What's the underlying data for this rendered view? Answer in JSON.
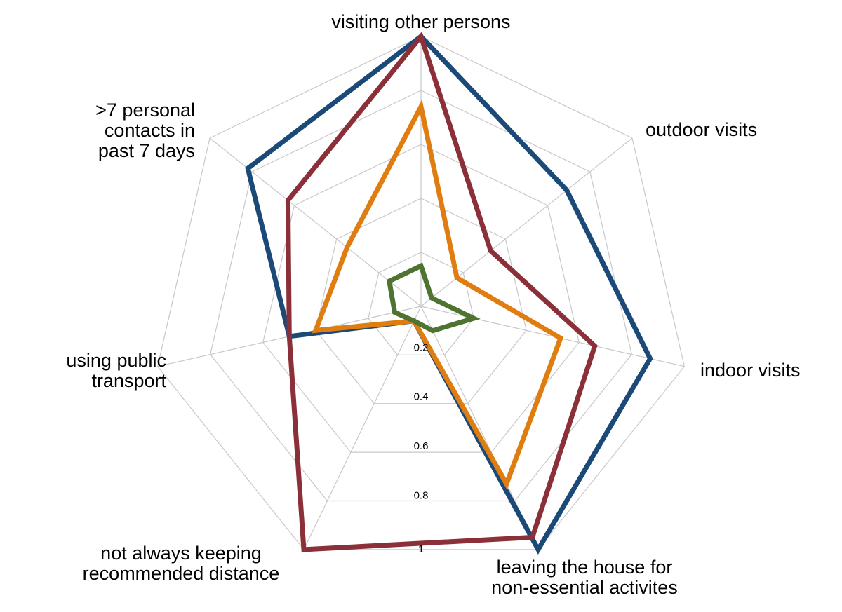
{
  "chart_data": {
    "type": "radar",
    "axes": [
      {
        "lines": [
          "visiting other persons"
        ],
        "anchor": "middle"
      },
      {
        "lines": [
          "outdoor visits"
        ],
        "anchor": "start"
      },
      {
        "lines": [
          "indoor visits"
        ],
        "anchor": "start"
      },
      {
        "lines": [
          "leaving the house for",
          "non-essential activites"
        ],
        "anchor": "middle"
      },
      {
        "lines": [
          "not always keeping",
          "recommended distance"
        ],
        "anchor": "middle"
      },
      {
        "lines": [
          "using public",
          "transport"
        ],
        "anchor": "end"
      },
      {
        "lines": [
          ">7 personal",
          "contacts in",
          "past 7 days"
        ],
        "anchor": "end"
      }
    ],
    "rlim": [
      0,
      1
    ],
    "ticks": [
      "0.2",
      "0.4",
      "0.6",
      "0.8",
      "1"
    ],
    "grid": true,
    "series": [
      {
        "color": "#1b4a78",
        "values": [
          1.0,
          0.69,
          0.87,
          1.0,
          0.06,
          0.5,
          0.82
        ]
      },
      {
        "color": "#8b3039",
        "values": [
          1.0,
          0.33,
          0.66,
          0.95,
          1.0,
          0.5,
          0.63
        ]
      },
      {
        "color": "#e07d10",
        "values": [
          0.74,
          0.17,
          0.53,
          0.73,
          0.06,
          0.4,
          0.35
        ]
      },
      {
        "color": "#4f7330",
        "values": [
          0.15,
          0.05,
          0.2,
          0.1,
          0.06,
          0.1,
          0.15
        ]
      }
    ]
  }
}
